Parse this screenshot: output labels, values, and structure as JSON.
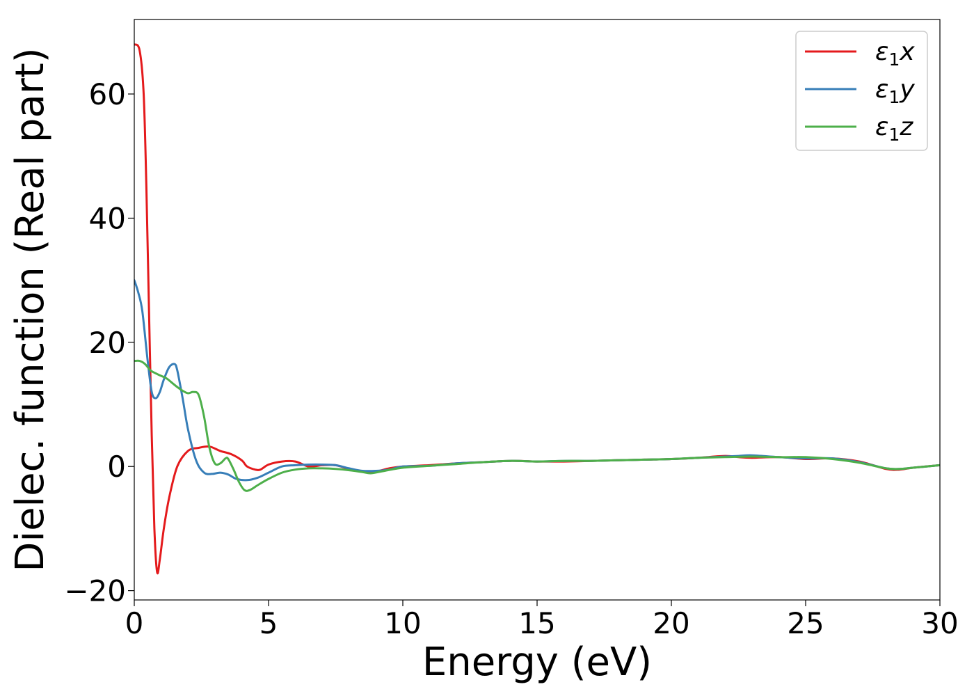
{
  "chart_data": {
    "type": "line",
    "xlabel": "Energy (eV)",
    "ylabel": "Dielec. function (Real part)",
    "xlim": [
      0,
      30
    ],
    "ylim": [
      -21.5,
      72
    ],
    "xticks": [
      0,
      5,
      10,
      15,
      20,
      25,
      30
    ],
    "yticks": [
      -20,
      0,
      20,
      40,
      60
    ],
    "xtick_labels": [
      "0",
      "5",
      "10",
      "15",
      "20",
      "25",
      "30"
    ],
    "ytick_labels": [
      "−20",
      "0",
      "20",
      "40",
      "60"
    ],
    "grid": false,
    "legend_position": "top-right",
    "series": [
      {
        "name": "ε1x",
        "legend_base": "ε",
        "legend_sub": "1",
        "legend_var": "x",
        "color": "#e41a1c",
        "x": [
          0,
          0.2,
          0.35,
          0.45,
          0.55,
          0.65,
          0.75,
          0.85,
          0.95,
          1.1,
          1.3,
          1.6,
          2.0,
          2.4,
          2.8,
          3.2,
          3.6,
          4.0,
          4.2,
          4.5,
          4.7,
          5.0,
          5.5,
          6.0,
          6.5,
          7.0,
          7.5,
          8.0,
          8.5,
          9.0,
          9.5,
          10,
          11,
          12,
          13,
          14,
          15,
          16,
          17,
          18,
          19,
          20,
          21,
          22,
          22.5,
          23,
          24,
          25,
          26,
          27,
          28,
          28.5,
          29,
          30
        ],
        "y": [
          68,
          67,
          60,
          45,
          25,
          5,
          -10,
          -17,
          -15,
          -10,
          -5,
          0,
          2.5,
          3,
          3.2,
          2.5,
          2,
          1,
          0,
          -0.5,
          -0.5,
          0.3,
          0.8,
          0.8,
          0,
          0.2,
          0.2,
          -0.4,
          -0.8,
          -0.8,
          -0.3,
          0,
          0.2,
          0.5,
          0.7,
          0.9,
          0.8,
          0.8,
          0.9,
          1.0,
          1.1,
          1.2,
          1.4,
          1.7,
          1.5,
          1.4,
          1.5,
          1.2,
          1.3,
          0.8,
          -0.4,
          -0.5,
          -0.2,
          0.2
        ]
      },
      {
        "name": "ε1y",
        "legend_base": "ε",
        "legend_sub": "1",
        "legend_var": "y",
        "color": "#377eb8",
        "x": [
          0,
          0.15,
          0.3,
          0.5,
          0.65,
          0.8,
          0.95,
          1.1,
          1.3,
          1.5,
          1.6,
          1.8,
          2.0,
          2.3,
          2.6,
          2.9,
          3.2,
          3.5,
          3.8,
          4.2,
          4.6,
          5.0,
          5.5,
          6.0,
          6.5,
          7.0,
          7.5,
          8.0,
          8.5,
          9.0,
          9.5,
          10,
          11,
          12,
          13,
          14,
          15,
          16,
          17,
          18,
          19,
          20,
          21,
          22,
          22.5,
          23,
          24,
          25,
          26,
          27,
          28,
          28.5,
          29,
          30
        ],
        "y": [
          30,
          28,
          25,
          17,
          12,
          11,
          12,
          14,
          16,
          16.5,
          15.5,
          11,
          6,
          1,
          -1,
          -1.2,
          -1.0,
          -1.3,
          -2,
          -2.2,
          -1.8,
          -1.0,
          0,
          0.2,
          0.3,
          0.3,
          0.2,
          -0.3,
          -0.7,
          -0.7,
          -0.5,
          0,
          0.1,
          0.5,
          0.7,
          0.9,
          0.8,
          0.9,
          0.9,
          1.0,
          1.1,
          1.2,
          1.4,
          1.6,
          1.7,
          1.8,
          1.5,
          1.3,
          1.3,
          0.7,
          -0.3,
          -0.4,
          -0.2,
          0.2
        ]
      },
      {
        "name": "ε1z",
        "legend_base": "ε",
        "legend_sub": "1",
        "legend_var": "z",
        "color": "#4daf4a",
        "x": [
          0,
          0.2,
          0.4,
          0.6,
          0.8,
          1.0,
          1.2,
          1.4,
          1.6,
          1.8,
          2.0,
          2.2,
          2.4,
          2.6,
          2.8,
          3.0,
          3.2,
          3.4,
          3.5,
          3.7,
          3.9,
          4.1,
          4.3,
          4.6,
          5.0,
          5.5,
          6.0,
          6.5,
          7.0,
          7.5,
          8.0,
          8.5,
          8.8,
          9.2,
          10,
          11,
          12,
          13,
          14,
          15,
          16,
          17,
          18,
          19,
          20,
          21,
          22,
          23,
          24,
          25,
          26,
          27,
          28,
          28.5,
          29,
          30
        ],
        "y": [
          17,
          17,
          16.5,
          15.5,
          15,
          14.6,
          14.2,
          13.5,
          12.8,
          12.2,
          11.8,
          12,
          11.5,
          8,
          3,
          0.5,
          0.5,
          1.3,
          1.2,
          -0.5,
          -2.5,
          -3.8,
          -3.8,
          -3,
          -2,
          -1,
          -0.5,
          -0.3,
          -0.3,
          -0.4,
          -0.6,
          -0.9,
          -1.1,
          -0.8,
          -0.2,
          0.1,
          0.4,
          0.7,
          0.9,
          0.8,
          0.9,
          0.9,
          1.0,
          1.1,
          1.2,
          1.4,
          1.5,
          1.6,
          1.5,
          1.5,
          1.2,
          0.6,
          -0.3,
          -0.4,
          -0.2,
          0.2
        ]
      }
    ]
  }
}
